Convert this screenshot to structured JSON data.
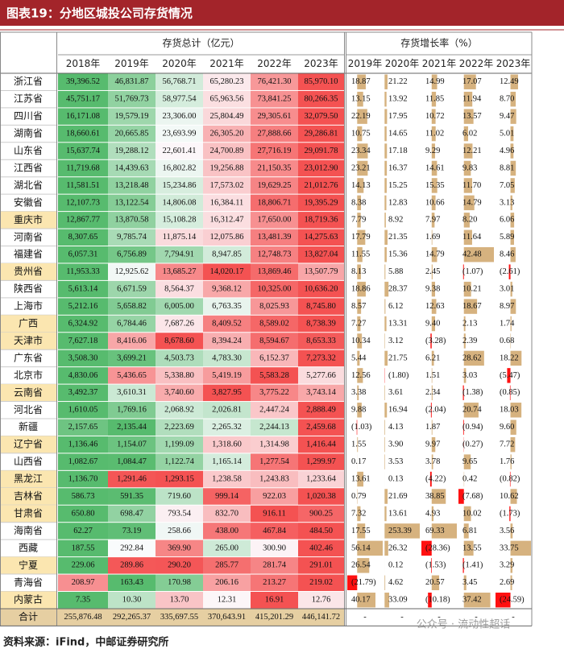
{
  "title": "图表19：分地区城投公司存货情况",
  "header": {
    "group1": "存货总计（亿元）",
    "group2": "存货增长率（%）",
    "total_years": [
      "2018年",
      "2019年",
      "2020年",
      "2021年",
      "2022年",
      "2023年"
    ],
    "growth_years": [
      "2019年",
      "2020年",
      "2021年",
      "2022年",
      "2023年"
    ]
  },
  "rows": [
    {
      "name": "浙江省",
      "totals": [
        "39,396.52",
        "46,831.87",
        "56,768.71",
        "65,280.23",
        "76,421.30",
        "85,970.10"
      ],
      "growth": [
        "18.87",
        "21.22",
        "14.99",
        "17.07",
        "12.49"
      ]
    },
    {
      "name": "江苏省",
      "totals": [
        "45,751.17",
        "51,769.73",
        "58,977.54",
        "65,963.56",
        "73,841.25",
        "80,266.35"
      ],
      "growth": [
        "13.15",
        "13.92",
        "11.85",
        "11.94",
        "8.70"
      ]
    },
    {
      "name": "四川省",
      "totals": [
        "16,171.08",
        "19,579.19",
        "23,306.00",
        "25,804.49",
        "29,305.61",
        "32,079.50"
      ],
      "growth": [
        "22.19",
        "17.95",
        "10.72",
        "13.57",
        "9.47"
      ]
    },
    {
      "name": "湖南省",
      "totals": [
        "18,660.61",
        "20,665.85",
        "23,693.99",
        "26,305.20",
        "27,888.66",
        "29,286.81"
      ],
      "growth": [
        "10.75",
        "14.65",
        "11.02",
        "6.02",
        "5.01"
      ]
    },
    {
      "name": "山东省",
      "totals": [
        "15,637.74",
        "19,288.12",
        "22,601.41",
        "24,700.89",
        "27,716.19",
        "29,091.78"
      ],
      "growth": [
        "23.34",
        "17.18",
        "9.29",
        "12.21",
        "4.96"
      ]
    },
    {
      "name": "江西省",
      "totals": [
        "11,719.68",
        "14,439.63",
        "16,802.82",
        "19,256.88",
        "21,150.35",
        "23,012.90"
      ],
      "growth": [
        "23.21",
        "16.37",
        "14.61",
        "9.83",
        "8.81"
      ]
    },
    {
      "name": "湖北省",
      "totals": [
        "11,581.51",
        "13,218.48",
        "15,234.86",
        "17,573.02",
        "19,629.25",
        "21,012.76"
      ],
      "growth": [
        "14.13",
        "15.25",
        "15.35",
        "11.70",
        "7.05"
      ]
    },
    {
      "name": "安徽省",
      "totals": [
        "12,107.73",
        "13,122.54",
        "14,806.08",
        "16,384.11",
        "18,806.71",
        "19,395.29"
      ],
      "growth": [
        "8.38",
        "12.83",
        "10.66",
        "14.79",
        "3.13"
      ]
    },
    {
      "name": "重庆市",
      "highlight": true,
      "totals": [
        "12,867.77",
        "13,870.58",
        "15,108.28",
        "16,312.47",
        "17,650.00",
        "18,719.36"
      ],
      "growth": [
        "7.79",
        "8.92",
        "7.97",
        "8.20",
        "6.06"
      ]
    },
    {
      "name": "河南省",
      "totals": [
        "8,307.65",
        "9,785.74",
        "11,875.14",
        "12,075.86",
        "13,481.39",
        "14,275.63"
      ],
      "growth": [
        "17.79",
        "21.35",
        "1.69",
        "11.64",
        "5.89"
      ]
    },
    {
      "name": "福建省",
      "totals": [
        "6,057.31",
        "6,756.89",
        "7,794.91",
        "8,947.85",
        "12,748.73",
        "13,827.04"
      ],
      "growth": [
        "11.55",
        "15.36",
        "14.79",
        "42.48",
        "8.46"
      ]
    },
    {
      "name": "贵州省",
      "highlight": true,
      "totals": [
        "11,953.33",
        "12,925.62",
        "13,685.27",
        "14,020.17",
        "13,869.46",
        "13,507.79"
      ],
      "growth": [
        "8.13",
        "5.88",
        "2.45",
        "(1.07)",
        "(2.61)"
      ]
    },
    {
      "name": "陕西省",
      "totals": [
        "5,613.14",
        "6,671.59",
        "8,564.37",
        "9,368.12",
        "10,325.00",
        "10,636.20"
      ],
      "growth": [
        "18.86",
        "28.37",
        "9.38",
        "10.21",
        "3.01"
      ]
    },
    {
      "name": "上海市",
      "totals": [
        "5,212.16",
        "5,658.82",
        "6,005.00",
        "6,763.35",
        "8,025.93",
        "8,745.80"
      ],
      "growth": [
        "8.57",
        "6.12",
        "12.63",
        "18.67",
        "8.97"
      ]
    },
    {
      "name": "广西",
      "highlight": true,
      "totals": [
        "6,324.92",
        "6,784.46",
        "7,687.26",
        "8,409.52",
        "8,589.02",
        "8,738.39"
      ],
      "growth": [
        "7.27",
        "13.31",
        "9.40",
        "2.13",
        "1.74"
      ]
    },
    {
      "name": "天津市",
      "highlight": true,
      "totals": [
        "7,627.18",
        "8,416.06",
        "8,678.60",
        "8,394.24",
        "8,594.67",
        "8,653.33"
      ],
      "growth": [
        "10.34",
        "3.12",
        "(3.28)",
        "2.39",
        "0.68"
      ]
    },
    {
      "name": "广东省",
      "totals": [
        "3,508.30",
        "3,699.21",
        "4,503.73",
        "4,783.30",
        "6,152.37",
        "7,273.32"
      ],
      "growth": [
        "5.44",
        "21.75",
        "6.21",
        "28.62",
        "18.22"
      ]
    },
    {
      "name": "北京市",
      "totals": [
        "4,830.06",
        "5,436.65",
        "5,338.80",
        "5,419.19",
        "5,583.28",
        "5,277.66"
      ],
      "growth": [
        "12.56",
        "(1.80)",
        "1.51",
        "3.03",
        "(5.47)"
      ]
    },
    {
      "name": "云南省",
      "highlight": true,
      "totals": [
        "3,492.37",
        "3,610.31",
        "3,740.60",
        "3,827.95",
        "3,775.22",
        "3,743.14"
      ],
      "growth": [
        "3.38",
        "3.61",
        "2.34",
        "(1.38)",
        "(0.85)"
      ]
    },
    {
      "name": "河北省",
      "totals": [
        "1,610.05",
        "1,769.16",
        "2,068.92",
        "2,026.81",
        "2,447.24",
        "2,888.49"
      ],
      "growth": [
        "9.88",
        "16.94",
        "(2.04)",
        "20.74",
        "18.03"
      ]
    },
    {
      "name": "新疆",
      "totals": [
        "2,157.65",
        "2,135.44",
        "2,223.69",
        "2,265.32",
        "2,244.13",
        "2,459.68"
      ],
      "growth": [
        "(1.03)",
        "4.13",
        "1.87",
        "(0.94)",
        "9.60"
      ]
    },
    {
      "name": "辽宁省",
      "highlight": true,
      "totals": [
        "1,136.46",
        "1,154.07",
        "1,199.09",
        "1,318.60",
        "1,314.98",
        "1,416.44"
      ],
      "growth": [
        "1.55",
        "3.90",
        "9.97",
        "(0.27)",
        "7.72"
      ]
    },
    {
      "name": "山西省",
      "totals": [
        "1,082.67",
        "1,084.47",
        "1,122.74",
        "1,165.14",
        "1,277.54",
        "1,299.97"
      ],
      "growth": [
        "0.17",
        "3.53",
        "3.78",
        "9.65",
        "1.76"
      ]
    },
    {
      "name": "黑龙江",
      "highlight": true,
      "totals": [
        "1,136.70",
        "1,291.46",
        "1,293.15",
        "1,238.58",
        "1,243.83",
        "1,233.64"
      ],
      "growth": [
        "13.61",
        "0.13",
        "(4.22)",
        "0.42",
        "(0.82)"
      ]
    },
    {
      "name": "吉林省",
      "highlight": true,
      "totals": [
        "586.73",
        "591.35",
        "719.60",
        "999.14",
        "922.03",
        "1,020.38"
      ],
      "growth": [
        "0.79",
        "21.69",
        "38.85",
        "(7.68)",
        "10.62"
      ]
    },
    {
      "name": "甘肃省",
      "highlight": true,
      "totals": [
        "650.80",
        "698.47",
        "793.54",
        "832.70",
        "916.11",
        "900.25"
      ],
      "growth": [
        "7.32",
        "13.61",
        "4.93",
        "10.02",
        "(1.73)"
      ]
    },
    {
      "name": "海南省",
      "totals": [
        "62.27",
        "73.19",
        "258.66",
        "438.00",
        "467.84",
        "484.50"
      ],
      "growth": [
        "17.55",
        "253.39",
        "69.33",
        "6.81",
        "3.56"
      ]
    },
    {
      "name": "西藏",
      "totals": [
        "187.55",
        "292.84",
        "369.90",
        "265.00",
        "300.90",
        "402.46"
      ],
      "growth": [
        "56.14",
        "26.32",
        "(28.36)",
        "13.55",
        "33.75"
      ]
    },
    {
      "name": "宁夏",
      "highlight": true,
      "totals": [
        "229.06",
        "289.86",
        "290.20",
        "285.77",
        "281.74",
        "291.01"
      ],
      "growth": [
        "26.54",
        "0.12",
        "(1.53)",
        "(1.41)",
        "3.29"
      ]
    },
    {
      "name": "青海省",
      "totals": [
        "208.97",
        "163.43",
        "170.98",
        "206.16",
        "213.27",
        "219.02"
      ],
      "growth": [
        "(21.79)",
        "4.62",
        "20.57",
        "3.45",
        "2.69"
      ]
    },
    {
      "name": "内蒙古",
      "highlight": true,
      "totals": [
        "7.35",
        "10.30",
        "13.70",
        "12.31",
        "16.91",
        "12.76"
      ],
      "growth": [
        "40.17",
        "33.09",
        "(10.18)",
        "37.42",
        "(24.59)"
      ]
    }
  ],
  "total_row": {
    "name": "合计",
    "totals": [
      "255,876.48",
      "292,265.37",
      "335,697.55",
      "370,643.91",
      "415,201.29",
      "446,141.72"
    ],
    "growth": [
      "-",
      "-",
      "-",
      "-",
      "-"
    ]
  },
  "watermark": "公众号 · 流动性超话",
  "source": "资料来源：iFind，中邮证券研究所"
}
